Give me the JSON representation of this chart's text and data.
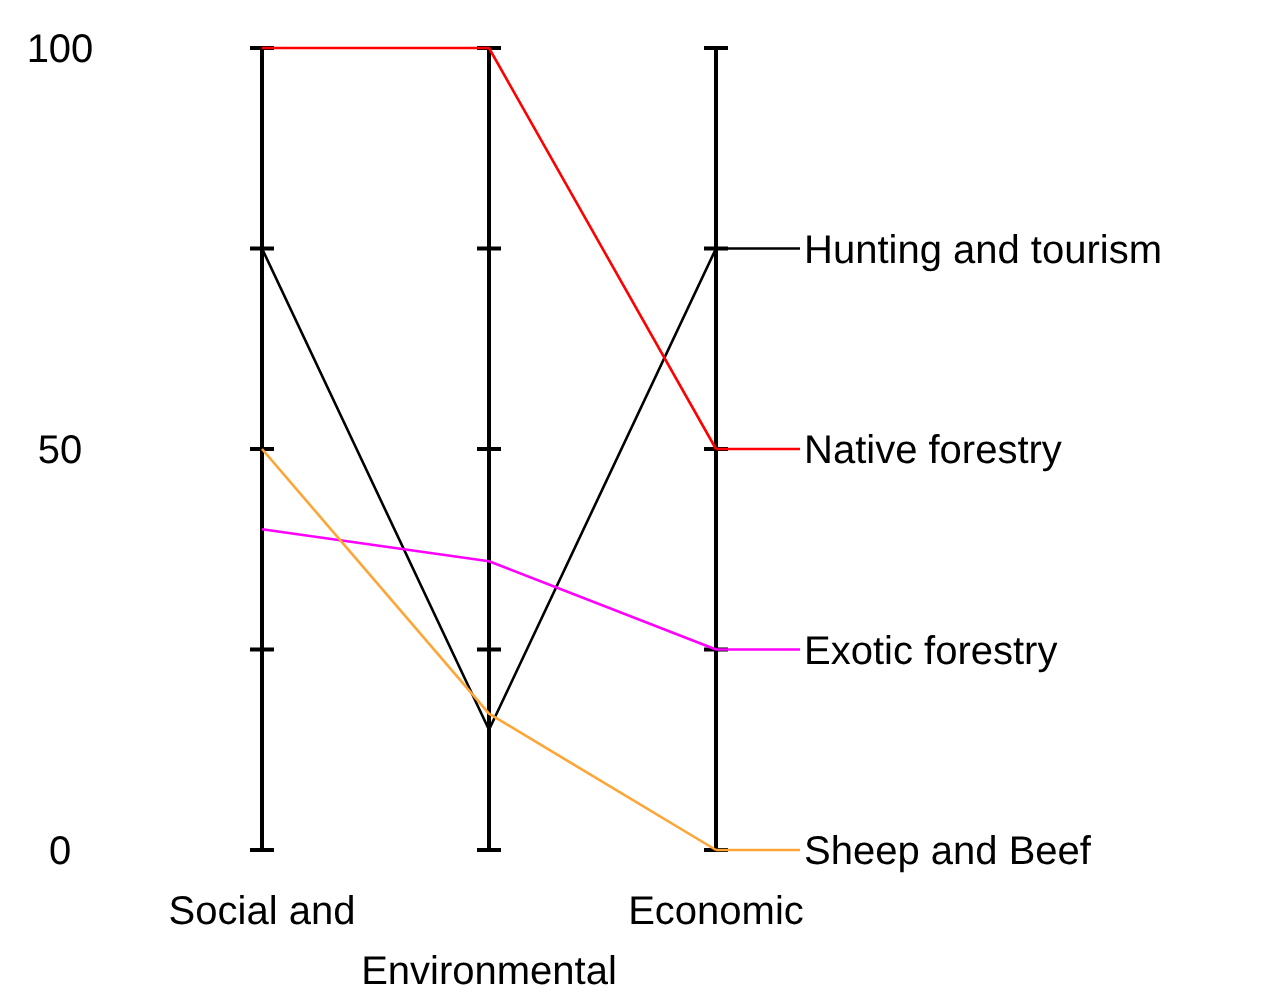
{
  "chart_data": {
    "type": "line",
    "categories": [
      "Social and",
      "Environmental",
      "Economic"
    ],
    "series": [
      {
        "name": "Hunting and tourism",
        "color": "#000000",
        "values": [
          75,
          15,
          75
        ]
      },
      {
        "name": "Native forestry",
        "color": "#ff0000",
        "values": [
          100,
          100,
          50
        ]
      },
      {
        "name": "Exotic forestry",
        "color": "#ff00ff",
        "values": [
          40,
          36,
          25
        ]
      },
      {
        "name": "Sheep and Beef",
        "color": "#ffa535",
        "values": [
          50,
          17,
          0
        ]
      }
    ],
    "ylim": [
      0,
      100
    ],
    "yticks": [
      0,
      50,
      100
    ],
    "grid": "x",
    "legend": "right",
    "marker": "none",
    "line_style": "solid"
  }
}
